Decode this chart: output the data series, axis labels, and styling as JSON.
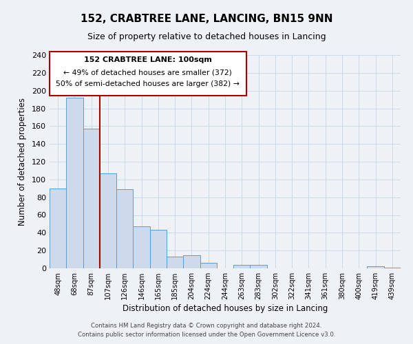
{
  "title": "152, CRABTREE LANE, LANCING, BN15 9NN",
  "subtitle": "Size of property relative to detached houses in Lancing",
  "xlabel": "Distribution of detached houses by size in Lancing",
  "ylabel": "Number of detached properties",
  "bar_color": "#ccdaeb",
  "bar_edge_color": "#5b9bd5",
  "categories": [
    "48sqm",
    "68sqm",
    "87sqm",
    "107sqm",
    "126sqm",
    "146sqm",
    "165sqm",
    "185sqm",
    "204sqm",
    "224sqm",
    "244sqm",
    "263sqm",
    "283sqm",
    "302sqm",
    "322sqm",
    "341sqm",
    "361sqm",
    "380sqm",
    "400sqm",
    "419sqm",
    "439sqm"
  ],
  "values": [
    90,
    192,
    157,
    107,
    89,
    47,
    43,
    13,
    15,
    6,
    0,
    4,
    4,
    0,
    0,
    0,
    0,
    0,
    0,
    2,
    1
  ],
  "ylim": [
    0,
    240
  ],
  "yticks": [
    0,
    20,
    40,
    60,
    80,
    100,
    120,
    140,
    160,
    180,
    200,
    220,
    240
  ],
  "vline_x": 2.5,
  "vline_color": "#aa0000",
  "annotation_line1": "152 CRABTREE LANE: 100sqm",
  "annotation_line2": "← 49% of detached houses are smaller (372)",
  "annotation_line3": "50% of semi-detached houses are larger (382) →",
  "footer_line1": "Contains HM Land Registry data © Crown copyright and database right 2024.",
  "footer_line2": "Contains public sector information licensed under the Open Government Licence v3.0.",
  "background_color": "#eef2f7",
  "grid_color": "#ccd8e8",
  "title_fontsize": 11,
  "subtitle_fontsize": 9
}
